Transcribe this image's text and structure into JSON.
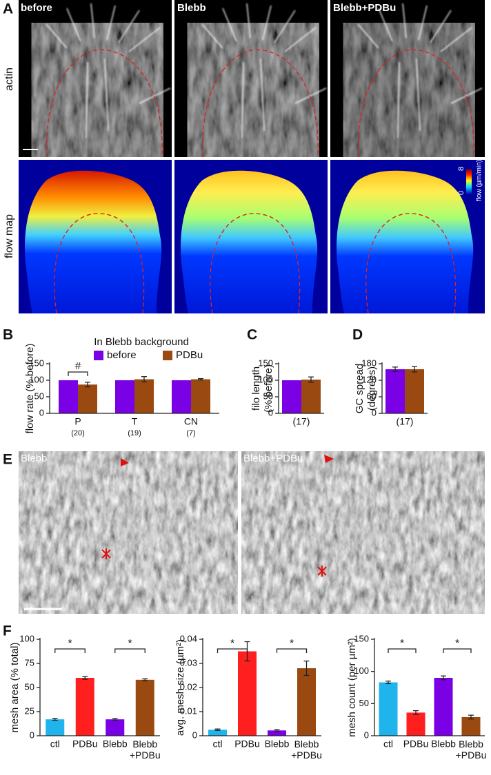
{
  "panel_labels": [
    "A",
    "B",
    "C",
    "D",
    "E",
    "F"
  ],
  "panel_a": {
    "columns": [
      "before",
      "Blebb",
      "Blebb+PDBu"
    ],
    "rows": [
      "actin",
      "flow map"
    ],
    "colorbar": {
      "label": "flow (µm/min)",
      "max": 8,
      "min": 0
    }
  },
  "panel_e": {
    "labels": [
      "Blebb",
      "Blebb+PDBu"
    ]
  },
  "chart_data": [
    {
      "type": "bar",
      "title": "In Blebb background",
      "y_label": "flow rate (% before)",
      "categories": [
        "P",
        "T",
        "CN"
      ],
      "category_notes": [
        "(20)",
        "(19)",
        "(7)"
      ],
      "series": [
        {
          "name": "before",
          "color": "#7a00e6",
          "values": [
            100,
            100,
            100
          ]
        },
        {
          "name": "PDBu",
          "color": "#9a4a10",
          "values": [
            87,
            103,
            103
          ],
          "errors": [
            7,
            8,
            2
          ]
        }
      ],
      "ylim": [
        0,
        150
      ],
      "yticks": [
        0,
        50,
        100,
        150
      ],
      "annotations": [
        "#"
      ]
    },
    {
      "type": "bar",
      "y_label": [
        "filo length",
        "(% before)"
      ],
      "categories": [
        "(17)"
      ],
      "series": [
        {
          "color": "#7a00e6",
          "values": [
            100
          ]
        },
        {
          "color": "#9a4a10",
          "values": [
            102
          ],
          "errors": [
            8
          ]
        }
      ],
      "ylim": [
        0,
        150
      ],
      "yticks": [
        0,
        50,
        100,
        150
      ]
    },
    {
      "type": "bar",
      "y_label": [
        "GC spread",
        "(degrees)"
      ],
      "categories": [
        "(17)"
      ],
      "series": [
        {
          "color": "#7a00e6",
          "values": [
            160
          ],
          "errors": [
            8
          ]
        },
        {
          "color": "#9a4a10",
          "values": [
            160
          ],
          "errors": [
            10
          ]
        }
      ],
      "ylim": [
        0,
        180
      ],
      "yticks": [
        0,
        60,
        120,
        180
      ]
    },
    {
      "type": "bar",
      "y_label": "mesh area (% total)",
      "categories": [
        "ctl",
        "PDBu",
        "Blebb",
        "Blebb+PDBu"
      ],
      "values": [
        17,
        60,
        17,
        58
      ],
      "errors": [
        1,
        1.5,
        0.8,
        1
      ],
      "colors": [
        "#1fb5ec",
        "#ff1f1f",
        "#7a00e6",
        "#9a4a10"
      ],
      "ylim": [
        0,
        100
      ],
      "yticks": [
        0,
        25,
        50,
        75,
        100
      ],
      "annotations": [
        "*",
        "*"
      ]
    },
    {
      "type": "bar",
      "y_label": "avg. mesh size (µm²)",
      "categories": [
        "ctl",
        "PDBu",
        "Blebb",
        "Blebb+PDBu"
      ],
      "values": [
        0.0025,
        0.035,
        0.0022,
        0.028
      ],
      "errors": [
        0.0003,
        0.004,
        0.0003,
        0.003
      ],
      "colors": [
        "#1fb5ec",
        "#ff1f1f",
        "#7a00e6",
        "#9a4a10"
      ],
      "ylim": [
        0,
        0.04
      ],
      "yticks": [
        0,
        0.01,
        0.02,
        0.03,
        0.04
      ],
      "annotations": [
        "*",
        "*"
      ]
    },
    {
      "type": "bar",
      "y_label": "mesh count (per µm²)",
      "categories": [
        "ctl",
        "PDBu",
        "Blebb",
        "Blebb+PDBu"
      ],
      "values": [
        83,
        36,
        90,
        29
      ],
      "errors": [
        2,
        3,
        3,
        3
      ],
      "colors": [
        "#1fb5ec",
        "#ff1f1f",
        "#7a00e6",
        "#9a4a10"
      ],
      "ylim": [
        0,
        150
      ],
      "yticks": [
        0,
        50,
        100,
        150
      ],
      "annotations": [
        "*",
        "*"
      ]
    }
  ]
}
